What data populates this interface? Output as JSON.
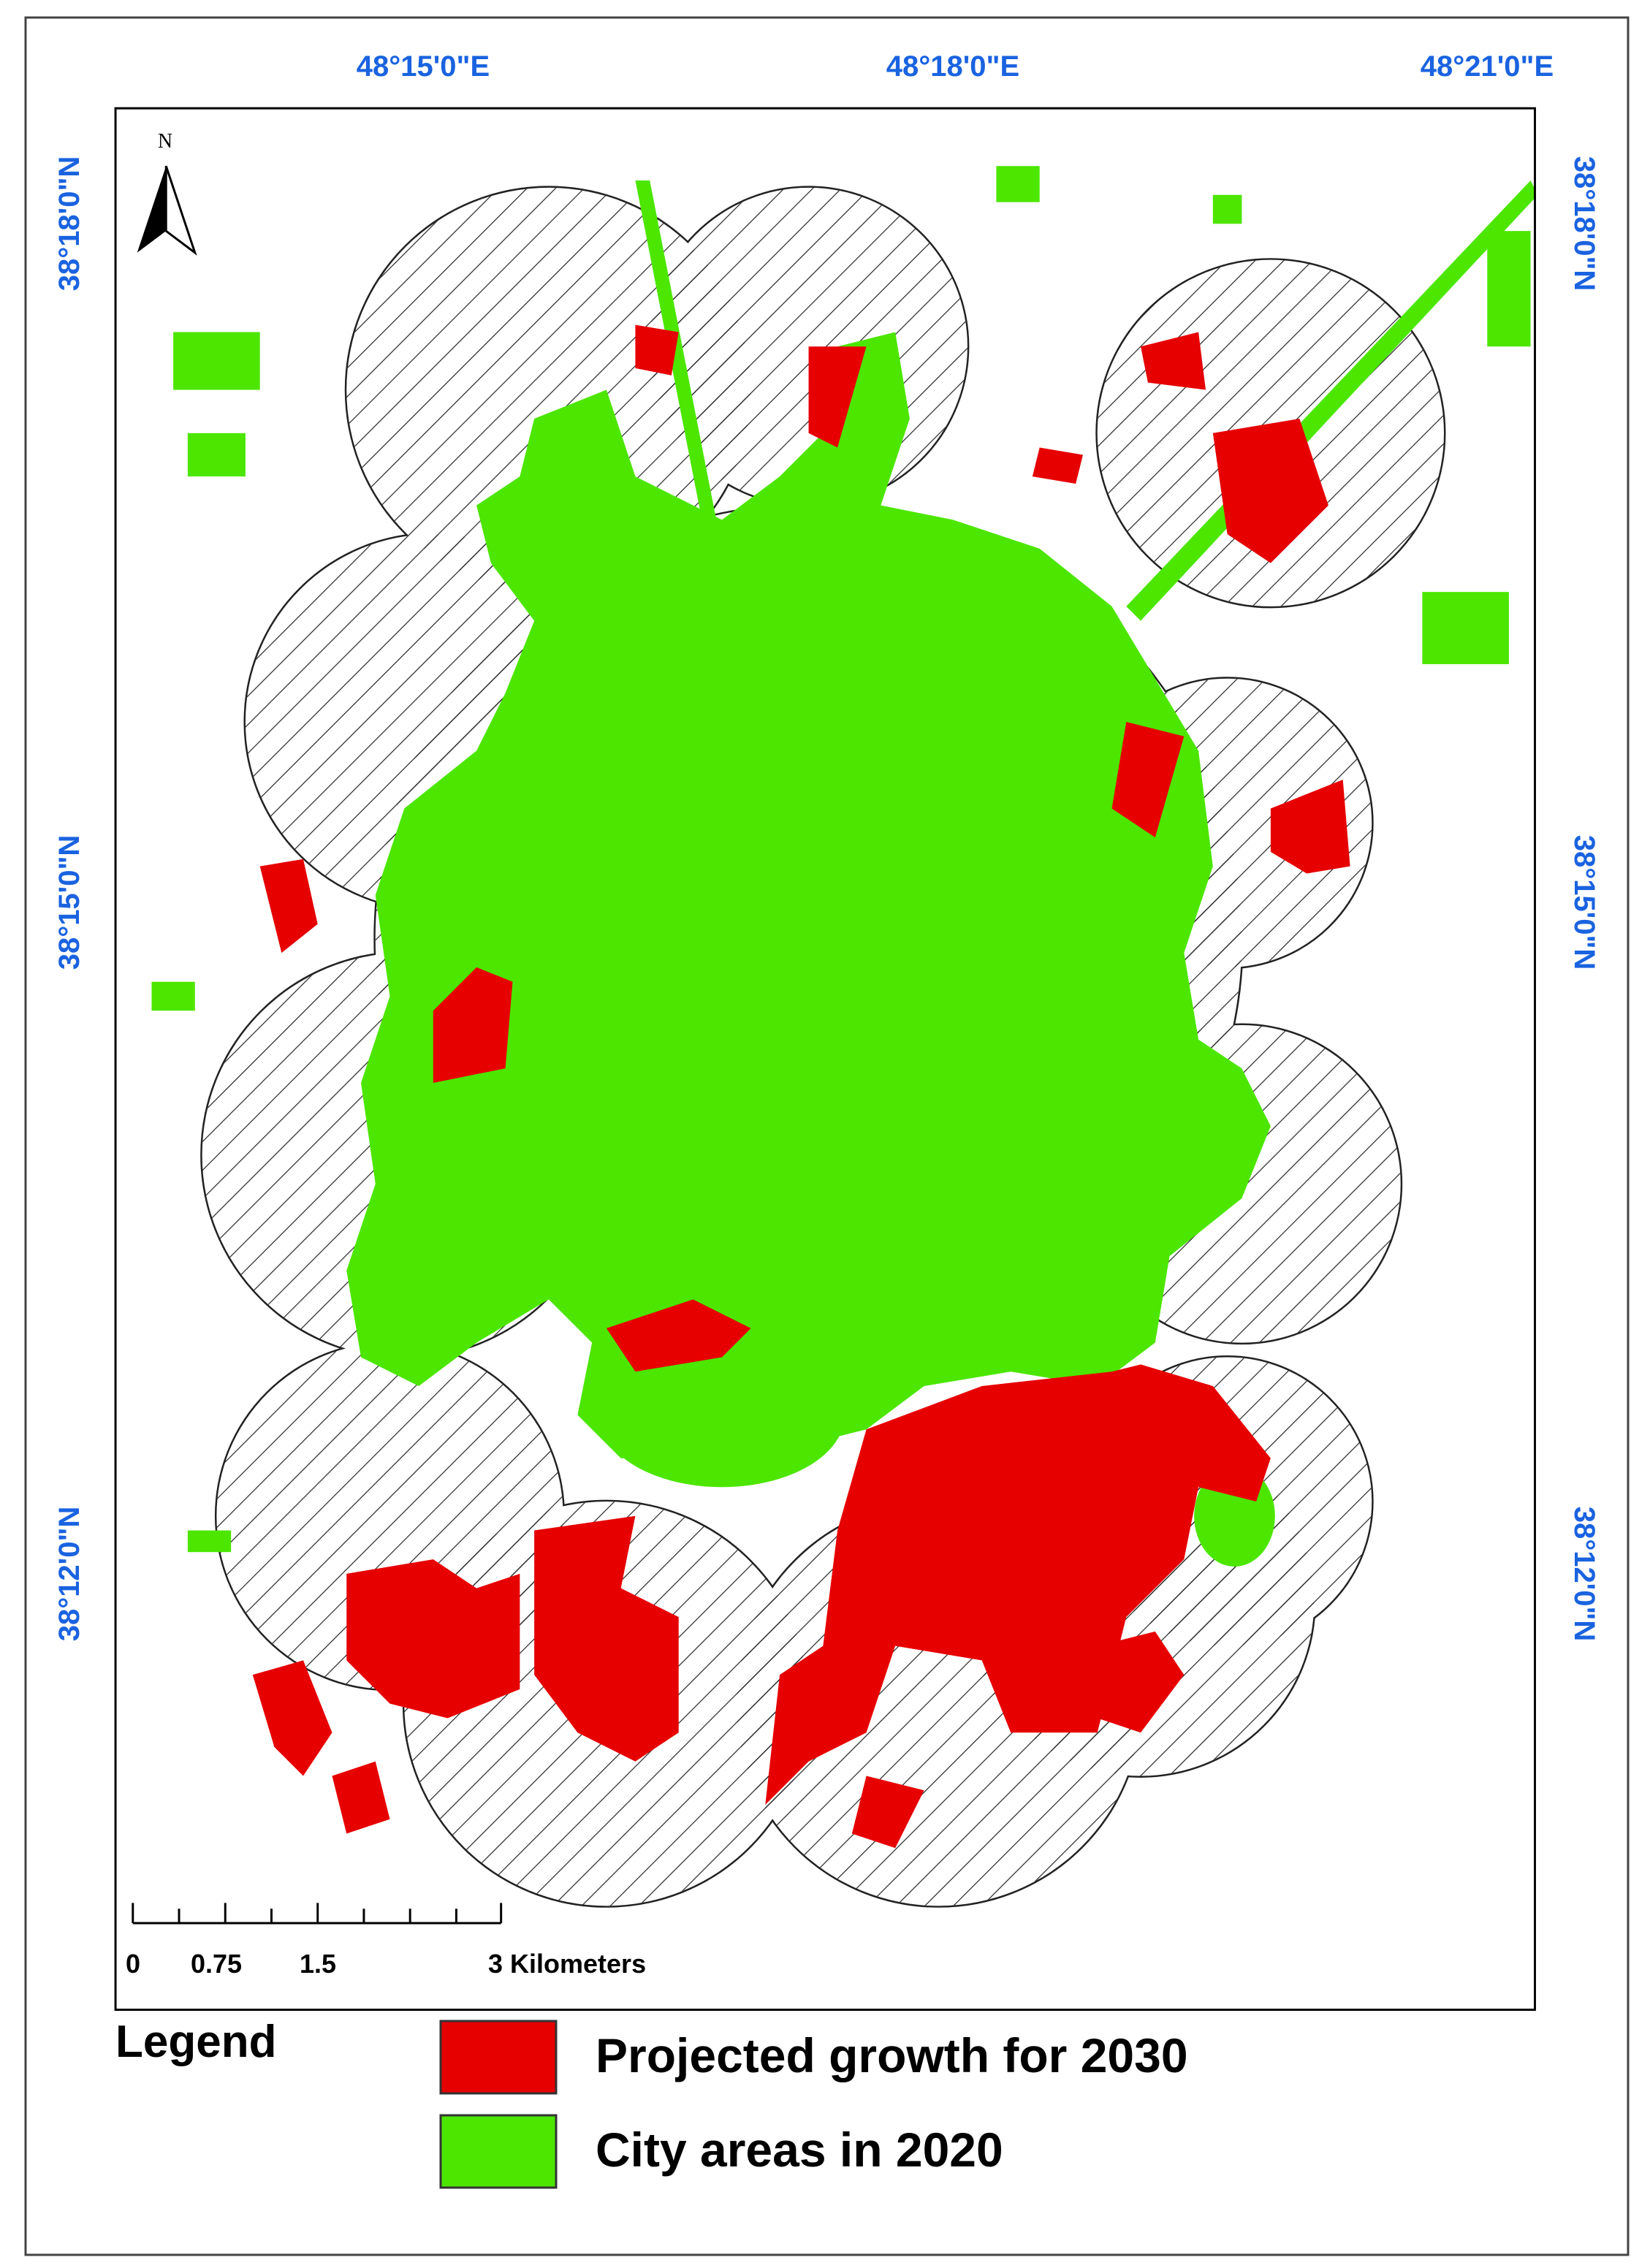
{
  "map": {
    "longitude_labels": [
      "48°15'0\"E",
      "48°18'0\"E",
      "48°21'0\"E"
    ],
    "latitude_labels_left": [
      "38°18'0\"N",
      "38°15'0\"N",
      "38°12'0\"N"
    ],
    "latitude_labels_right": [
      "38°18'0\"N",
      "38°15'0\"N",
      "38°12'0\"N"
    ],
    "north_label": "N",
    "scale_bar": {
      "labels": [
        "0",
        "0.75",
        "1.5",
        "3 Kilometers"
      ]
    }
  },
  "legend": {
    "title": "Legend",
    "items": [
      {
        "label": "Projected growth for 2030",
        "color": "#e60000"
      },
      {
        "label": "City areas in 2020",
        "color": "#4ce600"
      }
    ]
  }
}
